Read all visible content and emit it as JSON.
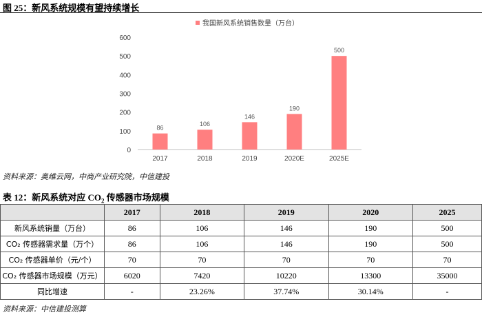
{
  "figure": {
    "title": "图 25：新风系统规模有望持续增长",
    "source": "资料来源：奥维云网，中商产业研究院，中信建投"
  },
  "chart_data": {
    "type": "bar",
    "title": "",
    "legend": "我国新风系统销售数量（万台）",
    "legend_position": "top",
    "categories": [
      "2017",
      "2018",
      "2019",
      "2020E",
      "2025E"
    ],
    "values": [
      86,
      106,
      146,
      190,
      500
    ],
    "ylim": [
      0,
      600
    ],
    "yticks": [
      0,
      100,
      200,
      300,
      400,
      500,
      600
    ],
    "grid": false,
    "xlabel": "",
    "ylabel": "",
    "bar_color": "#ff7f80"
  },
  "table": {
    "title_pre": "表 12：新风系统对应 CO",
    "title_sub": "2",
    "title_post": " 传感器市场规模",
    "headers": [
      "",
      "2017",
      "2018",
      "2019",
      "2020",
      "2025"
    ],
    "rows": [
      {
        "label": "新风系统销量（万台）",
        "values": [
          "86",
          "106",
          "146",
          "190",
          "500"
        ]
      },
      {
        "label": "CO₂ 传感器需求量（万个）",
        "values": [
          "86",
          "106",
          "146",
          "190",
          "500"
        ]
      },
      {
        "label": "CO₂ 传感器单价（元/个）",
        "values": [
          "70",
          "70",
          "70",
          "70",
          "70"
        ]
      },
      {
        "label": "CO₂ 传感器市场规模（万元）",
        "values": [
          "6020",
          "7420",
          "10220",
          "13300",
          "35000"
        ]
      },
      {
        "label": "同比增速",
        "values": [
          "-",
          "23.26%",
          "37.74%",
          "30.14%",
          "-"
        ]
      }
    ],
    "source": "资料来源：中信建投测算"
  }
}
